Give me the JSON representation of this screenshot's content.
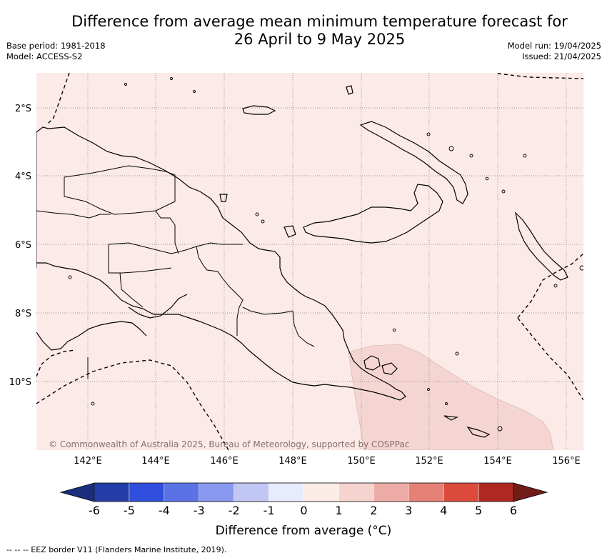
{
  "header": {
    "title_line1": "Difference from average mean minimum temperature forecast for",
    "title_line2": "26 April to 9 May 2025",
    "base_period": "Base period: 1981-2018",
    "model": "Model: ACCESS-S2",
    "model_run": "Model run: 19/04/2025",
    "issued": "Issued: 21/04/2025"
  },
  "map": {
    "lon_ticks": [
      "142°E",
      "144°E",
      "146°E",
      "148°E",
      "150°E",
      "152°E",
      "154°E",
      "156°E"
    ],
    "lat_ticks": [
      "2°S",
      "4°S",
      "6°S",
      "8°S",
      "10°S"
    ],
    "credit": "© Commonwealth of Australia 2025, Bureau of Meteorology, supported by COSPPac",
    "background_color": "#fbeae7",
    "warm_anomaly_color": "#f4d5d2",
    "anomaly_regions": [
      {
        "label": "0 to 1",
        "color": "#fbeae7"
      },
      {
        "label": "1 to 2",
        "color": "#f4d5d2"
      }
    ]
  },
  "colorbar": {
    "ticks": [
      "-6",
      "-5",
      "-4",
      "-3",
      "-2",
      "-1",
      "0",
      "1",
      "2",
      "3",
      "4",
      "5",
      "6"
    ],
    "colors": [
      "#233ca8",
      "#2f4fdc",
      "#5a72e6",
      "#8898ee",
      "#c0c7f5",
      "#e8ebfb",
      "#fcece8",
      "#f5d3cf",
      "#eeaca7",
      "#e58077",
      "#dc4a3c",
      "#ae2922"
    ],
    "left_extend_color": "#1b2d7d",
    "right_extend_color": "#721c17",
    "label": "Difference from average (°C)"
  },
  "legend": {
    "eez_label": "-- -- -- EEZ border V11 (Flanders Marine Institute, 2019)."
  }
}
